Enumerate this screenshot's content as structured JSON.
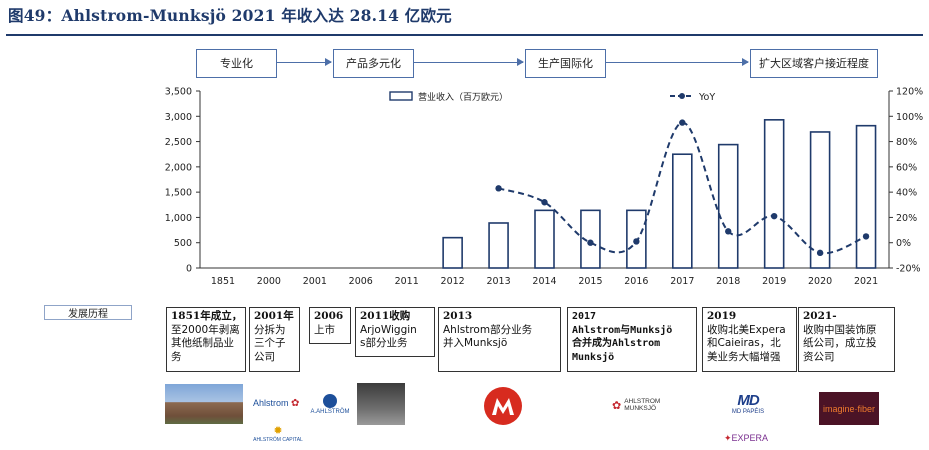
{
  "title": "图49：Ahlstrom-Munksjö 2021 年收入达 28.14 亿欧元",
  "stages": [
    "专业化",
    "产品多元化",
    "生产国际化",
    "扩大区域客户接近程度"
  ],
  "chart_data": {
    "type": "bar",
    "categories": [
      "1851",
      "2000",
      "2001",
      "2006",
      "2011",
      "2012",
      "2013",
      "2014",
      "2015",
      "2016",
      "2017",
      "2018",
      "2019",
      "2020",
      "2021"
    ],
    "series": [
      {
        "name": "营业收入（百万欧元）",
        "type": "bar",
        "values": [
          null,
          null,
          null,
          null,
          null,
          600,
          890,
          1140,
          1140,
          1140,
          2250,
          2440,
          2930,
          2690,
          2814
        ]
      },
      {
        "name": "YoY",
        "type": "line",
        "axis": "right",
        "values": [
          null,
          null,
          null,
          null,
          null,
          null,
          43,
          32,
          0,
          1,
          95,
          9,
          21,
          -8,
          5
        ]
      }
    ],
    "ylim_left": [
      0,
      3500
    ],
    "ylim_right": [
      -20,
      120
    ],
    "yticks_left": [
      "3,500",
      "3,000",
      "2,500",
      "2,000",
      "1,500",
      "1,000",
      "500",
      "0"
    ],
    "yticks_right": [
      "120%",
      "100%",
      "80%",
      "60%",
      "40%",
      "20%",
      "0%",
      "-20%"
    ],
    "legend": "top-center",
    "grid": false
  },
  "history_label": "发展历程",
  "history": [
    {
      "lines": [
        "1851年成立，",
        "至2000年剥离",
        "其他纸制品业",
        "务"
      ]
    },
    {
      "lines": [
        "2001年",
        "分拆为",
        "三个子",
        "公司"
      ]
    },
    {
      "lines": [
        "2006",
        "上市"
      ]
    },
    {
      "lines": [
        "2011收购",
        "ArjoWiggin",
        "s部分业务"
      ]
    },
    {
      "lines": [
        "2013",
        "Ahlstrom部分业务",
        "并入Munksjö"
      ]
    },
    {
      "lines": [
        "2017",
        "Ahlstrom与Munksjö",
        "合并成为Ahlstrom",
        "Munksjö"
      ]
    },
    {
      "lines": [
        "2019",
        "收购北美Expera",
        "和Caieiras，北",
        "美业务大幅增强"
      ]
    },
    {
      "lines": [
        "2021-",
        "收购中国装饰原",
        "纸公司，成立投",
        "资公司"
      ]
    }
  ],
  "logos": {
    "ahlstrom": "Ahlstrom",
    "a_ahlstrom": "A.AHLSTRÖM",
    "ahlstrom_capital": "AHLSTRÖM CAPITAL",
    "am_line1": "AHLSTROM",
    "am_line2": "MUNKSJÖ",
    "md": "MD PAPÉIS",
    "imagine": "imagine·fiber",
    "expera": "EXPERA"
  }
}
